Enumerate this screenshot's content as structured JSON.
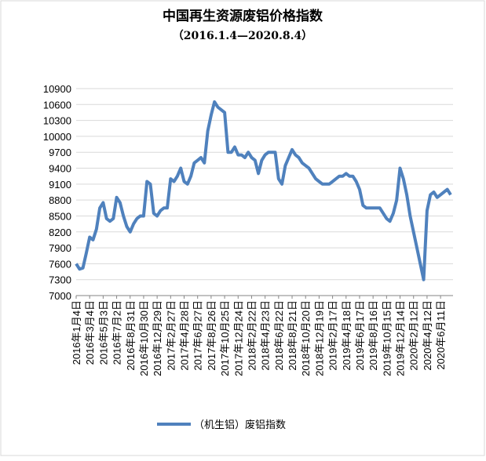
{
  "chart_data": {
    "type": "line",
    "title": "中国再生资源废铝价格指数",
    "subtitle": "（2016.1.4—2020.8.4）",
    "categories": [
      "2016年1月4日",
      null,
      null,
      null,
      "2016年3月4日",
      null,
      null,
      null,
      "2016年5月3日",
      null,
      null,
      null,
      "2016年7月2日",
      null,
      null,
      null,
      "2016年8月31日",
      null,
      null,
      null,
      "2016年10月30日",
      null,
      null,
      null,
      "2016年12月29日",
      null,
      null,
      null,
      "2017年2月27日",
      null,
      null,
      null,
      "2017年4月28日",
      null,
      null,
      null,
      "2017年6月27日",
      null,
      null,
      null,
      "2017年8月26日",
      null,
      null,
      null,
      "2017年10月25日",
      null,
      null,
      null,
      "2017年12月24日",
      null,
      null,
      null,
      "2018年2月22日",
      null,
      null,
      null,
      "2018年4月23日",
      null,
      null,
      null,
      "2018年6月22日",
      null,
      null,
      null,
      "2018年8月21日",
      null,
      null,
      null,
      "2018年10月20日",
      null,
      null,
      null,
      "2018年12月19日",
      null,
      null,
      null,
      "2019年2月17日",
      null,
      null,
      null,
      "2019年4月18日",
      null,
      null,
      null,
      "2019年6月17日",
      null,
      null,
      null,
      "2019年8月16日",
      null,
      null,
      null,
      "2019年10月15日",
      null,
      null,
      null,
      "2019年12月14日",
      null,
      null,
      null,
      "2020年2月12日",
      null,
      null,
      null,
      "2020年4月12日",
      null,
      null,
      null,
      "2020年6月11日",
      null,
      null,
      null
    ],
    "series": [
      {
        "name": "（机生铝）废铝指数",
        "color": "#4f81bd",
        "values": [
          7600,
          7500,
          7520,
          7800,
          8100,
          8050,
          8250,
          8650,
          8750,
          8450,
          8400,
          8450,
          8850,
          8750,
          8500,
          8300,
          8200,
          8350,
          8450,
          8500,
          8500,
          9150,
          9100,
          8550,
          8500,
          8600,
          8650,
          8650,
          9200,
          9150,
          9250,
          9400,
          9150,
          9100,
          9250,
          9500,
          9550,
          9600,
          9500,
          10100,
          10400,
          10650,
          10550,
          10500,
          10450,
          9700,
          9700,
          9800,
          9650,
          9650,
          9600,
          9700,
          9600,
          9550,
          9300,
          9550,
          9650,
          9700,
          9700,
          9700,
          9200,
          9100,
          9450,
          9600,
          9750,
          9650,
          9600,
          9500,
          9450,
          9400,
          9300,
          9200,
          9150,
          9100,
          9100,
          9100,
          9150,
          9200,
          9250,
          9250,
          9300,
          9250,
          9250,
          9150,
          9000,
          8700,
          8650,
          8650,
          8650,
          8650,
          8650,
          8550,
          8450,
          8400,
          8550,
          8800,
          9400,
          9200,
          8900,
          8500,
          8200,
          7900,
          7600,
          7300,
          8600,
          8900,
          8950,
          8850,
          8900,
          8950,
          9000,
          8900
        ]
      }
    ],
    "ylim": [
      7000,
      10900
    ],
    "yticks": [
      7000,
      7300,
      7600,
      7900,
      8200,
      8500,
      8800,
      9100,
      9400,
      9700,
      10000,
      10300,
      10600,
      10900
    ],
    "grid": true,
    "legend": "bottom"
  }
}
